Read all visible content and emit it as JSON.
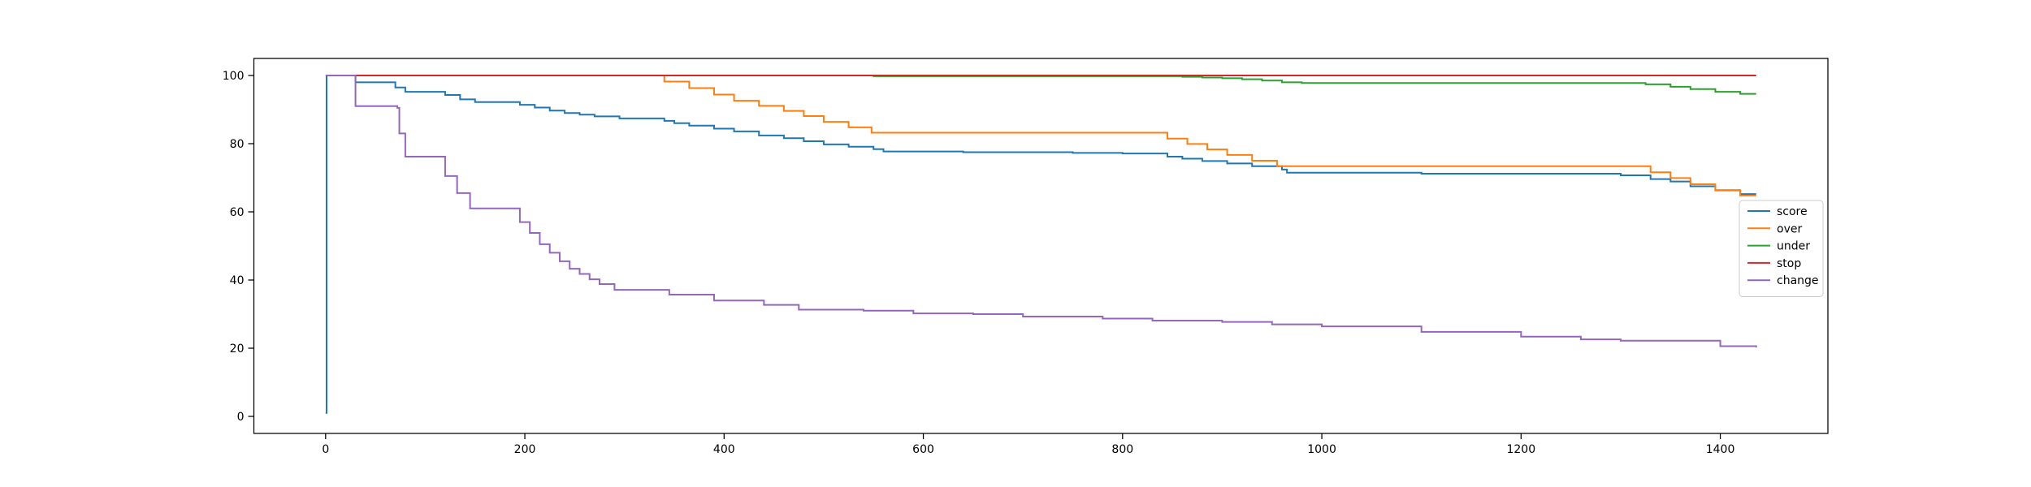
{
  "chart_data": {
    "type": "line",
    "title": "",
    "xlabel": "",
    "ylabel": "",
    "xlim": [
      -72,
      1508
    ],
    "ylim": [
      -5,
      105
    ],
    "xticks": [
      0,
      200,
      400,
      600,
      800,
      1000,
      1200,
      1400
    ],
    "yticks": [
      0,
      20,
      40,
      60,
      80,
      100
    ],
    "xtick_labels": [
      "0",
      "200",
      "400",
      "600",
      "800",
      "1000",
      "1200",
      "1400"
    ],
    "ytick_labels": [
      "0",
      "20",
      "40",
      "60",
      "80",
      "100"
    ],
    "grid": false,
    "legend": {
      "position": "center-right"
    },
    "series": [
      {
        "name": "score",
        "color": "#1f77b4",
        "step": true,
        "points": [
          [
            0,
            1
          ],
          [
            1,
            100
          ],
          [
            30,
            98
          ],
          [
            70,
            96.5
          ],
          [
            80,
            95.2
          ],
          [
            120,
            94.3
          ],
          [
            135,
            93
          ],
          [
            150,
            92.2
          ],
          [
            195,
            91.4
          ],
          [
            210,
            90.6
          ],
          [
            225,
            89.7
          ],
          [
            240,
            89
          ],
          [
            255,
            88.5
          ],
          [
            270,
            88
          ],
          [
            295,
            87.4
          ],
          [
            340,
            86.7
          ],
          [
            350,
            86
          ],
          [
            365,
            85.3
          ],
          [
            390,
            84.4
          ],
          [
            410,
            83.6
          ],
          [
            435,
            82.4
          ],
          [
            460,
            81.6
          ],
          [
            480,
            80.7
          ],
          [
            500,
            79.8
          ],
          [
            525,
            79.1
          ],
          [
            550,
            78.4
          ],
          [
            560,
            77.7
          ],
          [
            640,
            77.5
          ],
          [
            750,
            77.3
          ],
          [
            800,
            77.1
          ],
          [
            845,
            76.2
          ],
          [
            860,
            75.6
          ],
          [
            880,
            74.9
          ],
          [
            905,
            74.2
          ],
          [
            930,
            73.4
          ],
          [
            960,
            72.4
          ],
          [
            965,
            71.5
          ],
          [
            1100,
            71.2
          ],
          [
            1300,
            70.7
          ],
          [
            1330,
            69.6
          ],
          [
            1350,
            68.9
          ],
          [
            1370,
            67.5
          ],
          [
            1395,
            66.3
          ],
          [
            1420,
            65.2
          ],
          [
            1436,
            65.2
          ]
        ]
      },
      {
        "name": "over",
        "color": "#ff7f0e",
        "step": true,
        "points": [
          [
            330,
            100
          ],
          [
            340,
            98.2
          ],
          [
            365,
            96.3
          ],
          [
            390,
            94.4
          ],
          [
            410,
            92.6
          ],
          [
            435,
            91.1
          ],
          [
            460,
            89.6
          ],
          [
            480,
            88.1
          ],
          [
            500,
            86.4
          ],
          [
            525,
            84.8
          ],
          [
            548,
            83.2
          ],
          [
            840,
            83.2
          ],
          [
            845,
            81.5
          ],
          [
            865,
            79.9
          ],
          [
            885,
            78.3
          ],
          [
            905,
            76.7
          ],
          [
            930,
            75
          ],
          [
            955,
            73.4
          ],
          [
            1325,
            73.4
          ],
          [
            1330,
            71.6
          ],
          [
            1350,
            69.9
          ],
          [
            1370,
            68.1
          ],
          [
            1395,
            66.4
          ],
          [
            1420,
            64.8
          ],
          [
            1436,
            64.8
          ]
        ]
      },
      {
        "name": "under",
        "color": "#2ca02c",
        "step": true,
        "points": [
          [
            530,
            100
          ],
          [
            550,
            99.8
          ],
          [
            840,
            99.8
          ],
          [
            860,
            99.6
          ],
          [
            880,
            99.4
          ],
          [
            900,
            99.2
          ],
          [
            920,
            98.9
          ],
          [
            940,
            98.5
          ],
          [
            960,
            98
          ],
          [
            980,
            97.8
          ],
          [
            1300,
            97.8
          ],
          [
            1325,
            97.4
          ],
          [
            1350,
            96.7
          ],
          [
            1370,
            96
          ],
          [
            1395,
            95.2
          ],
          [
            1420,
            94.6
          ],
          [
            1436,
            94.6
          ]
        ]
      },
      {
        "name": "stop",
        "color": "#d62728",
        "step": true,
        "points": [
          [
            30,
            100
          ],
          [
            1436,
            100
          ]
        ]
      },
      {
        "name": "change",
        "color": "#9467bd",
        "step": true,
        "points": [
          [
            0,
            100
          ],
          [
            29,
            100
          ],
          [
            30,
            91
          ],
          [
            72,
            90.5
          ],
          [
            74,
            83
          ],
          [
            80,
            76.2
          ],
          [
            117,
            76.2
          ],
          [
            120,
            70.5
          ],
          [
            132,
            65.5
          ],
          [
            145,
            61
          ],
          [
            195,
            57
          ],
          [
            205,
            53.8
          ],
          [
            215,
            50.5
          ],
          [
            225,
            48
          ],
          [
            235,
            45.5
          ],
          [
            245,
            43.3
          ],
          [
            255,
            41.8
          ],
          [
            265,
            40.2
          ],
          [
            275,
            38.8
          ],
          [
            290,
            37.1
          ],
          [
            345,
            35.7
          ],
          [
            390,
            34
          ],
          [
            440,
            32.7
          ],
          [
            475,
            31.3
          ],
          [
            540,
            31
          ],
          [
            590,
            30.2
          ],
          [
            650,
            30
          ],
          [
            700,
            29.3
          ],
          [
            780,
            28.7
          ],
          [
            830,
            28.1
          ],
          [
            900,
            27.7
          ],
          [
            950,
            27
          ],
          [
            1000,
            26.4
          ],
          [
            1100,
            24.8
          ],
          [
            1200,
            23.4
          ],
          [
            1260,
            22.6
          ],
          [
            1300,
            22.2
          ],
          [
            1400,
            20.6
          ],
          [
            1436,
            20.2
          ]
        ]
      }
    ]
  }
}
